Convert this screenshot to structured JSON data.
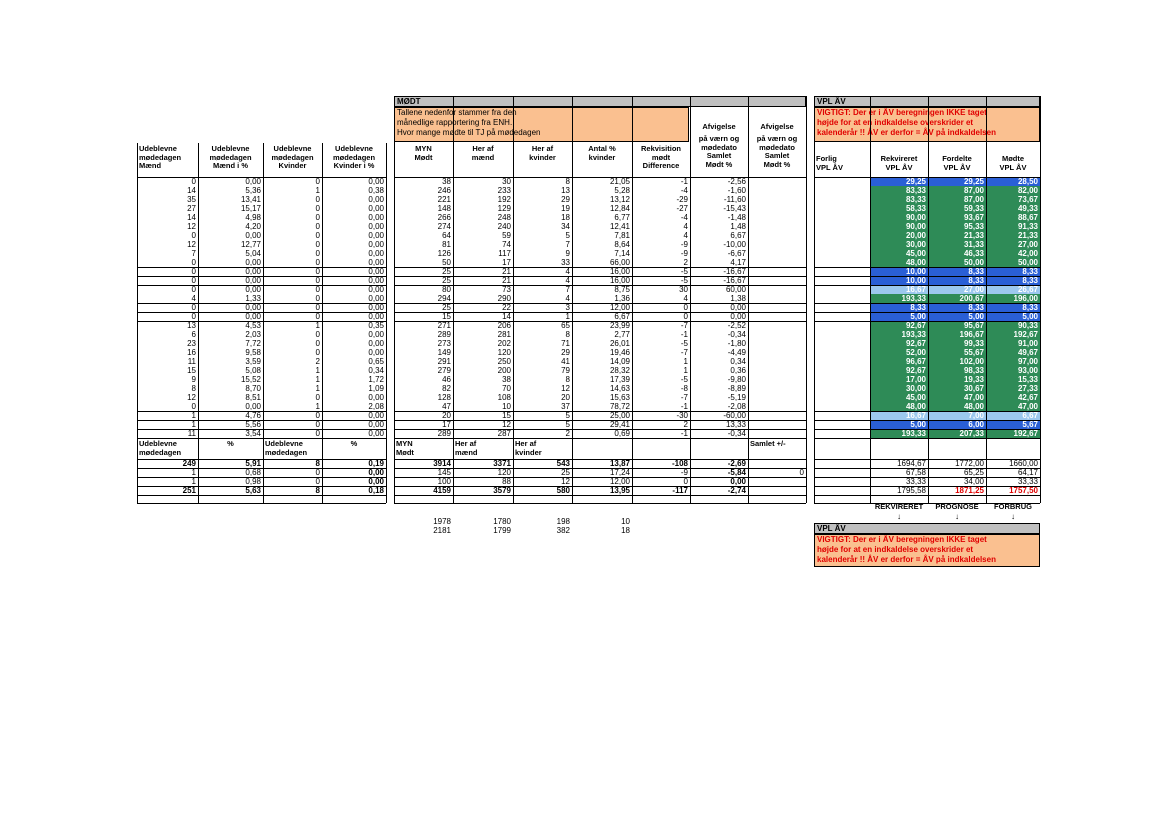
{
  "modt": {
    "title": "MØDT",
    "note": [
      "Tallene nedenfor stammer fra den",
      "månedlige rapportering fra ENH.",
      "Hvor mange mødte til TJ på mødedagen"
    ]
  },
  "vpl": {
    "title": "VPL ÅV",
    "warning": [
      "VIGTIGT: Der er i ÅV beregningen IKKE taget",
      "højde for at en indkaldelse overskrider et",
      "kalenderår !! ÅV er derfor = ÅV på indkaldelsen"
    ],
    "bottom_labels": [
      "REKVIRERET",
      "PROGNOSE",
      "FORBRUG"
    ]
  },
  "headers": {
    "left": [
      [
        "Udeblevne",
        "mødedagen",
        "Mænd"
      ],
      [
        "Udeblevne",
        "mødedagen",
        "Mænd i %"
      ],
      [
        "Udeblevne",
        "mødedagen",
        "Kvinder"
      ],
      [
        "Udeblevne",
        "mødedagen",
        "Kvinder i %"
      ]
    ],
    "mid": [
      [
        "",
        "MYN",
        "Mødt"
      ],
      [
        "",
        "Her af",
        "mænd"
      ],
      [
        "",
        "Her af",
        "kvinder"
      ],
      [
        "",
        "Antal %",
        "kvinder"
      ],
      [
        "Rekvisition",
        "mødt",
        "Difference"
      ],
      [
        "på værn og",
        "mødedato",
        "Samlet",
        "Mødt %"
      ],
      [
        "på værn og",
        "mødedato",
        "Samlet",
        "Mødt %"
      ]
    ],
    "afv": [
      "Afvigelse",
      "Afvigelse"
    ],
    "right": [
      [
        "Forlig",
        "VPL ÅV"
      ],
      [
        "Rekvireret",
        "VPL ÅV"
      ],
      [
        "Fordelte",
        "VPL ÅV"
      ],
      [
        "Mødte",
        "VPL ÅV"
      ]
    ]
  },
  "rows": [
    {
      "l": [
        "0",
        "0,00",
        "0",
        "0,00"
      ],
      "m": [
        "38",
        "30",
        "8",
        "21,05",
        "-1",
        "-2,56",
        ""
      ],
      "v": [
        "29,25",
        "29,25",
        "28,50"
      ],
      "c": "dark"
    },
    {
      "l": [
        "14",
        "5,36",
        "1",
        "0,38"
      ],
      "m": [
        "246",
        "233",
        "13",
        "5,28",
        "-4",
        "-1,60",
        ""
      ],
      "v": [
        "83,33",
        "87,00",
        "82,00"
      ],
      "c": "green"
    },
    {
      "l": [
        "35",
        "13,41",
        "0",
        "0,00"
      ],
      "m": [
        "221",
        "192",
        "29",
        "13,12",
        "-29",
        "-11,60",
        ""
      ],
      "v": [
        "83,33",
        "87,00",
        "73,67"
      ],
      "c": "green"
    },
    {
      "l": [
        "27",
        "15,17",
        "0",
        "0,00"
      ],
      "m": [
        "148",
        "129",
        "19",
        "12,84",
        "-27",
        "-15,43",
        ""
      ],
      "v": [
        "58,33",
        "59,33",
        "49,33"
      ],
      "c": "green"
    },
    {
      "l": [
        "14",
        "4,98",
        "0",
        "0,00"
      ],
      "m": [
        "266",
        "248",
        "18",
        "6,77",
        "-4",
        "-1,48",
        ""
      ],
      "v": [
        "90,00",
        "93,67",
        "88,67"
      ],
      "c": "green"
    },
    {
      "l": [
        "12",
        "4,20",
        "0",
        "0,00"
      ],
      "m": [
        "274",
        "240",
        "34",
        "12,41",
        "4",
        "1,48",
        ""
      ],
      "v": [
        "90,00",
        "95,33",
        "91,33"
      ],
      "c": "green"
    },
    {
      "l": [
        "0",
        "0,00",
        "0",
        "0,00"
      ],
      "m": [
        "64",
        "59",
        "5",
        "7,81",
        "4",
        "6,67",
        ""
      ],
      "v": [
        "20,00",
        "21,33",
        "21,33"
      ],
      "c": "green"
    },
    {
      "l": [
        "12",
        "12,77",
        "0",
        "0,00"
      ],
      "m": [
        "81",
        "74",
        "7",
        "8,64",
        "-9",
        "-10,00",
        ""
      ],
      "v": [
        "30,00",
        "31,33",
        "27,00"
      ],
      "c": "green"
    },
    {
      "l": [
        "7",
        "5,04",
        "0",
        "0,00"
      ],
      "m": [
        "126",
        "117",
        "9",
        "7,14",
        "-9",
        "-6,67",
        ""
      ],
      "v": [
        "45,00",
        "46,33",
        "42,00"
      ],
      "c": "green"
    },
    {
      "l": [
        "0",
        "0,00",
        "0",
        "0,00"
      ],
      "m": [
        "50",
        "17",
        "33",
        "66,00",
        "2",
        "4,17",
        ""
      ],
      "v": [
        "48,00",
        "50,00",
        "50,00"
      ],
      "c": "green"
    },
    {
      "l": [
        "0",
        "0,00",
        "0",
        "0,00"
      ],
      "m": [
        "25",
        "21",
        "4",
        "16,00",
        "-5",
        "-16,67",
        ""
      ],
      "v": [
        "10,00",
        "8,33",
        "8,33"
      ],
      "c": "blue"
    },
    {
      "l": [
        "0",
        "0,00",
        "0",
        "0,00"
      ],
      "m": [
        "25",
        "21",
        "4",
        "16,00",
        "-5",
        "-16,67",
        ""
      ],
      "v": [
        "10,00",
        "8,33",
        "8,33"
      ],
      "c": "blue"
    },
    {
      "l": [
        "0",
        "0,00",
        "0",
        "0,00"
      ],
      "m": [
        "80",
        "73",
        "7",
        "8,75",
        "30",
        "60,00",
        ""
      ],
      "v": [
        "16,67",
        "27,00",
        "26,67"
      ],
      "c": "light"
    },
    {
      "l": [
        "4",
        "1,33",
        "0",
        "0,00"
      ],
      "m": [
        "294",
        "290",
        "4",
        "1,36",
        "4",
        "1,38",
        ""
      ],
      "v": [
        "193,33",
        "200,67",
        "196,00"
      ],
      "c": "green"
    },
    {
      "l": [
        "0",
        "0,00",
        "0",
        "0,00"
      ],
      "m": [
        "25",
        "22",
        "3",
        "12,00",
        "0",
        "0,00",
        ""
      ],
      "v": [
        "8,33",
        "8,33",
        "8,33"
      ],
      "c": "blue"
    },
    {
      "l": [
        "0",
        "0,00",
        "0",
        "0,00"
      ],
      "m": [
        "15",
        "14",
        "1",
        "6,67",
        "0",
        "0,00",
        ""
      ],
      "v": [
        "5,00",
        "5,00",
        "5,00"
      ],
      "c": "blue"
    },
    {
      "l": [
        "13",
        "4,53",
        "1",
        "0,35"
      ],
      "m": [
        "271",
        "206",
        "65",
        "23,99",
        "-7",
        "-2,52",
        ""
      ],
      "v": [
        "92,67",
        "95,67",
        "90,33"
      ],
      "c": "green"
    },
    {
      "l": [
        "6",
        "2,03",
        "0",
        "0,00"
      ],
      "m": [
        "289",
        "281",
        "8",
        "2,77",
        "-1",
        "-0,34",
        ""
      ],
      "v": [
        "193,33",
        "196,67",
        "192,67"
      ],
      "c": "green"
    },
    {
      "l": [
        "23",
        "7,72",
        "0",
        "0,00"
      ],
      "m": [
        "273",
        "202",
        "71",
        "26,01",
        "-5",
        "-1,80",
        ""
      ],
      "v": [
        "92,67",
        "99,33",
        "91,00"
      ],
      "c": "green"
    },
    {
      "l": [
        "16",
        "9,58",
        "0",
        "0,00"
      ],
      "m": [
        "149",
        "120",
        "29",
        "19,46",
        "-7",
        "-4,49",
        ""
      ],
      "v": [
        "52,00",
        "55,67",
        "49,67"
      ],
      "c": "green"
    },
    {
      "l": [
        "11",
        "3,59",
        "2",
        "0,65"
      ],
      "m": [
        "291",
        "250",
        "41",
        "14,09",
        "1",
        "0,34",
        ""
      ],
      "v": [
        "96,67",
        "102,00",
        "97,00"
      ],
      "c": "green"
    },
    {
      "l": [
        "15",
        "5,08",
        "1",
        "0,34"
      ],
      "m": [
        "279",
        "200",
        "79",
        "28,32",
        "1",
        "0,36",
        ""
      ],
      "v": [
        "92,67",
        "98,33",
        "93,00"
      ],
      "c": "green"
    },
    {
      "l": [
        "9",
        "15,52",
        "1",
        "1,72"
      ],
      "m": [
        "46",
        "38",
        "8",
        "17,39",
        "-5",
        "-9,80",
        ""
      ],
      "v": [
        "17,00",
        "19,33",
        "15,33"
      ],
      "c": "green"
    },
    {
      "l": [
        "8",
        "8,70",
        "1",
        "1,09"
      ],
      "m": [
        "82",
        "70",
        "12",
        "14,63",
        "-8",
        "-8,89",
        ""
      ],
      "v": [
        "30,00",
        "30,67",
        "27,33"
      ],
      "c": "green"
    },
    {
      "l": [
        "12",
        "8,51",
        "0",
        "0,00"
      ],
      "m": [
        "128",
        "108",
        "20",
        "15,63",
        "-7",
        "-5,19",
        ""
      ],
      "v": [
        "45,00",
        "47,00",
        "42,67"
      ],
      "c": "green"
    },
    {
      "l": [
        "0",
        "0,00",
        "1",
        "2,08"
      ],
      "m": [
        "47",
        "10",
        "37",
        "78,72",
        "-1",
        "-2,08",
        ""
      ],
      "v": [
        "48,00",
        "48,00",
        "47,00"
      ],
      "c": "green"
    },
    {
      "l": [
        "1",
        "4,76",
        "0",
        "0,00"
      ],
      "m": [
        "20",
        "15",
        "5",
        "25,00",
        "-30",
        "-60,00",
        ""
      ],
      "v": [
        "16,67",
        "7,00",
        "6,67"
      ],
      "c": "light"
    },
    {
      "l": [
        "1",
        "5,56",
        "0",
        "0,00"
      ],
      "m": [
        "17",
        "12",
        "5",
        "29,41",
        "2",
        "13,33",
        ""
      ],
      "v": [
        "5,00",
        "6,00",
        "5,67"
      ],
      "c": "blue"
    },
    {
      "l": [
        "11",
        "3,54",
        "0",
        "0,00"
      ],
      "m": [
        "289",
        "287",
        "2",
        "0,69",
        "-1",
        "-0,34",
        ""
      ],
      "v": [
        "193,33",
        "207,33",
        "192,67"
      ],
      "c": "green"
    }
  ],
  "sum_header": {
    "left": [
      [
        "Udeblevne",
        "mødedagen"
      ],
      [
        "",
        "%"
      ],
      [
        "Udeblevne",
        "mødedagen"
      ],
      [
        "",
        "%"
      ]
    ],
    "mid": [
      [
        "MYN",
        "Mødt"
      ],
      [
        "Her af",
        "mænd"
      ],
      [
        "Her af",
        "kvinder"
      ],
      [
        "",
        ""
      ],
      [
        "",
        ""
      ],
      [
        "",
        ""
      ],
      [
        "Samlet +/-",
        ""
      ]
    ]
  },
  "sum_rows": [
    {
      "l": [
        "249",
        "5,91",
        "8",
        "0,19"
      ],
      "m": [
        "3914",
        "3371",
        "543",
        "13,87",
        "-108",
        "-2,69",
        ""
      ],
      "v": [
        "1694,67",
        "1772,00",
        "1660,00"
      ]
    },
    {
      "l": [
        "1",
        "0,68",
        "0",
        "0,00"
      ],
      "m": [
        "145",
        "120",
        "25",
        "17,24",
        "-9",
        "-5,84",
        "0"
      ],
      "v": [
        "67,58",
        "65,25",
        "64,17"
      ]
    },
    {
      "l": [
        "1",
        "0,98",
        "0",
        "0,00"
      ],
      "m": [
        "100",
        "88",
        "12",
        "12,00",
        "0",
        "0,00",
        ""
      ],
      "v": [
        "33,33",
        "34,00",
        "33,33"
      ]
    },
    {
      "l": [
        "251",
        "5,63",
        "8",
        "0,18"
      ],
      "m": [
        "4159",
        "3579",
        "580",
        "13,95",
        "-117",
        "-2,74",
        ""
      ],
      "v": [
        "1795,58",
        "1871,25",
        "1757,50"
      ]
    }
  ],
  "extra_rows": [
    [
      "1978",
      "1780",
      "198",
      "10"
    ],
    [
      "2181",
      "1799",
      "382",
      "18"
    ]
  ],
  "colors": {
    "green": "#2e8b57",
    "blue": "#2a5fd6",
    "dark": "#2a5fd6",
    "light": "#9cc8ee",
    "grey": "#c0c0c0",
    "peach": "#fac090",
    "red": "#e00000"
  }
}
